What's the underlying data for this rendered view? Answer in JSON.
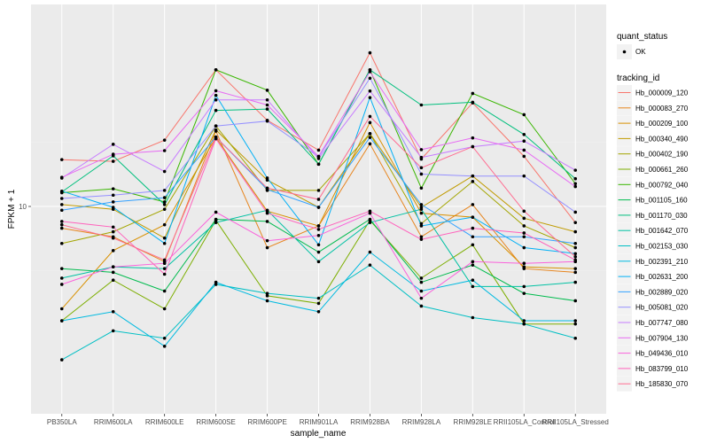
{
  "chart_data": {
    "type": "line",
    "title": "",
    "xlabel": "sample_name",
    "ylabel": "FPKM + 1",
    "y_scale": "log10",
    "y_ticks": [
      10
    ],
    "y_tick_labels": [
      "10"
    ],
    "grid": true,
    "legend_position": "right",
    "categories": [
      "PB350LA",
      "RRIM600LA",
      "RRIM600LE",
      "RRIM600SE",
      "RRIM600PE",
      "RRIM901LA",
      "RRIM928BA",
      "RRIM928LA",
      "RRIM928LE",
      "RRII105LA_Control",
      "RRII105LA_Stressed"
    ],
    "legends": [
      {
        "title": "quant_status",
        "entries": [
          {
            "label": "OK",
            "shape": "point"
          }
        ]
      },
      {
        "title": "tracking_id",
        "entries_ref": "series"
      }
    ],
    "series": [
      {
        "name": "Hb_000009_120",
        "color": "#F8766D",
        "values": [
          16.6,
          16.3,
          20.5,
          43.9,
          25.4,
          18.4,
          52.8,
          16.7,
          30.7,
          17.2,
          8.4
        ]
      },
      {
        "name": "Hb_000083_270",
        "color": "#E7851E",
        "values": [
          7.9,
          7.2,
          5.5,
          22.6,
          6.4,
          8.1,
          19.7,
          7.2,
          10.2,
          5.1,
          4.9
        ]
      },
      {
        "name": "Hb_000209_100",
        "color": "#D89000",
        "values": [
          3.3,
          6.2,
          8.2,
          21.1,
          9.5,
          8.1,
          24.8,
          9.3,
          8.9,
          5.2,
          5.1
        ]
      },
      {
        "name": "Hb_000340_490",
        "color": "#C09B00",
        "values": [
          10.2,
          9.7,
          7.1,
          22.9,
          13.3,
          9.9,
          22.0,
          9.9,
          13.9,
          8.8,
          7.6
        ]
      },
      {
        "name": "Hb_000402_190",
        "color": "#A3A500",
        "values": [
          6.7,
          7.6,
          9.7,
          23.9,
          11.9,
          11.9,
          22.0,
          8.3,
          13.1,
          8.1,
          6.4
        ]
      },
      {
        "name": "Hb_000661_260",
        "color": "#7CAE00",
        "values": [
          2.9,
          4.5,
          3.3,
          8.6,
          3.8,
          3.5,
          8.6,
          4.6,
          6.6,
          2.8,
          2.8
        ]
      },
      {
        "name": "Hb_000792_040",
        "color": "#39B600",
        "values": [
          11.6,
          12.1,
          10.5,
          43.9,
          35.2,
          15.8,
          43.9,
          12.2,
          34.0,
          27.0,
          12.8
        ]
      },
      {
        "name": "Hb_001105_160",
        "color": "#00BB4E",
        "values": [
          5.1,
          4.9,
          4.0,
          8.7,
          8.5,
          6.1,
          8.7,
          4.4,
          5.3,
          3.9,
          3.6
        ]
      },
      {
        "name": "Hb_001170_030",
        "color": "#00BF7D",
        "values": [
          11.7,
          17.3,
          10.2,
          28.3,
          28.7,
          15.8,
          43.9,
          30.0,
          30.9,
          21.8,
          13.5
        ]
      },
      {
        "name": "Hb_001642_070",
        "color": "#00C1A3",
        "values": [
          4.6,
          5.2,
          5.1,
          8.4,
          9.6,
          5.5,
          8.4,
          9.7,
          4.2,
          4.2,
          4.4
        ]
      },
      {
        "name": "Hb_002153_030",
        "color": "#00BFC4",
        "values": [
          1.9,
          2.6,
          2.4,
          4.3,
          3.9,
          3.7,
          5.3,
          3.4,
          3.0,
          2.8,
          2.4
        ]
      },
      {
        "name": "Hb_002391_210",
        "color": "#00BAE0",
        "values": [
          2.9,
          3.2,
          2.2,
          4.4,
          3.6,
          3.2,
          6.1,
          4.0,
          4.5,
          2.9,
          2.9
        ]
      },
      {
        "name": "Hb_002631_200",
        "color": "#00B0F6",
        "values": [
          11.8,
          9.9,
          6.7,
          33.3,
          13.6,
          6.6,
          32.5,
          8.1,
          8.9,
          6.4,
          6.0
        ]
      },
      {
        "name": "Hb_002889_020",
        "color": "#35A2FF",
        "values": [
          9.6,
          10.5,
          11.0,
          21.2,
          12.0,
          9.9,
          21.1,
          10.2,
          7.2,
          7.2,
          6.7
        ]
      },
      {
        "name": "Hb_005081_020",
        "color": "#9590FF",
        "values": [
          10.9,
          11.3,
          11.9,
          23.9,
          25.2,
          17.1,
          40.1,
          14.2,
          13.9,
          13.9,
          9.4
        ]
      },
      {
        "name": "Hb_007747_080",
        "color": "#C77CFF",
        "values": [
          13.6,
          19.6,
          14.6,
          31.7,
          31.7,
          16.8,
          34.9,
          17.0,
          19.1,
          20.3,
          14.8
        ]
      },
      {
        "name": "Hb_007904_130",
        "color": "#E76BF3",
        "values": [
          13.7,
          17.6,
          18.3,
          35.0,
          30.0,
          17.2,
          43.0,
          18.5,
          21.0,
          18.4,
          12.4
        ]
      },
      {
        "name": "Hb_049436_010",
        "color": "#FA62DB",
        "values": [
          4.3,
          5.2,
          5.4,
          9.4,
          6.9,
          7.3,
          9.3,
          3.7,
          5.5,
          5.4,
          5.5
        ]
      },
      {
        "name": "Hb_083799_010",
        "color": "#FF62BC",
        "values": [
          8.5,
          8.0,
          4.8,
          20.8,
          9.3,
          7.8,
          9.5,
          7.0,
          7.9,
          7.5,
          5.6
        ]
      },
      {
        "name": "Hb_185830_070",
        "color": "#FF6C91",
        "values": [
          8.2,
          7.1,
          5.6,
          21.2,
          12.2,
          10.8,
          26.5,
          15.2,
          19.1,
          9.5,
          5.8
        ]
      }
    ]
  }
}
